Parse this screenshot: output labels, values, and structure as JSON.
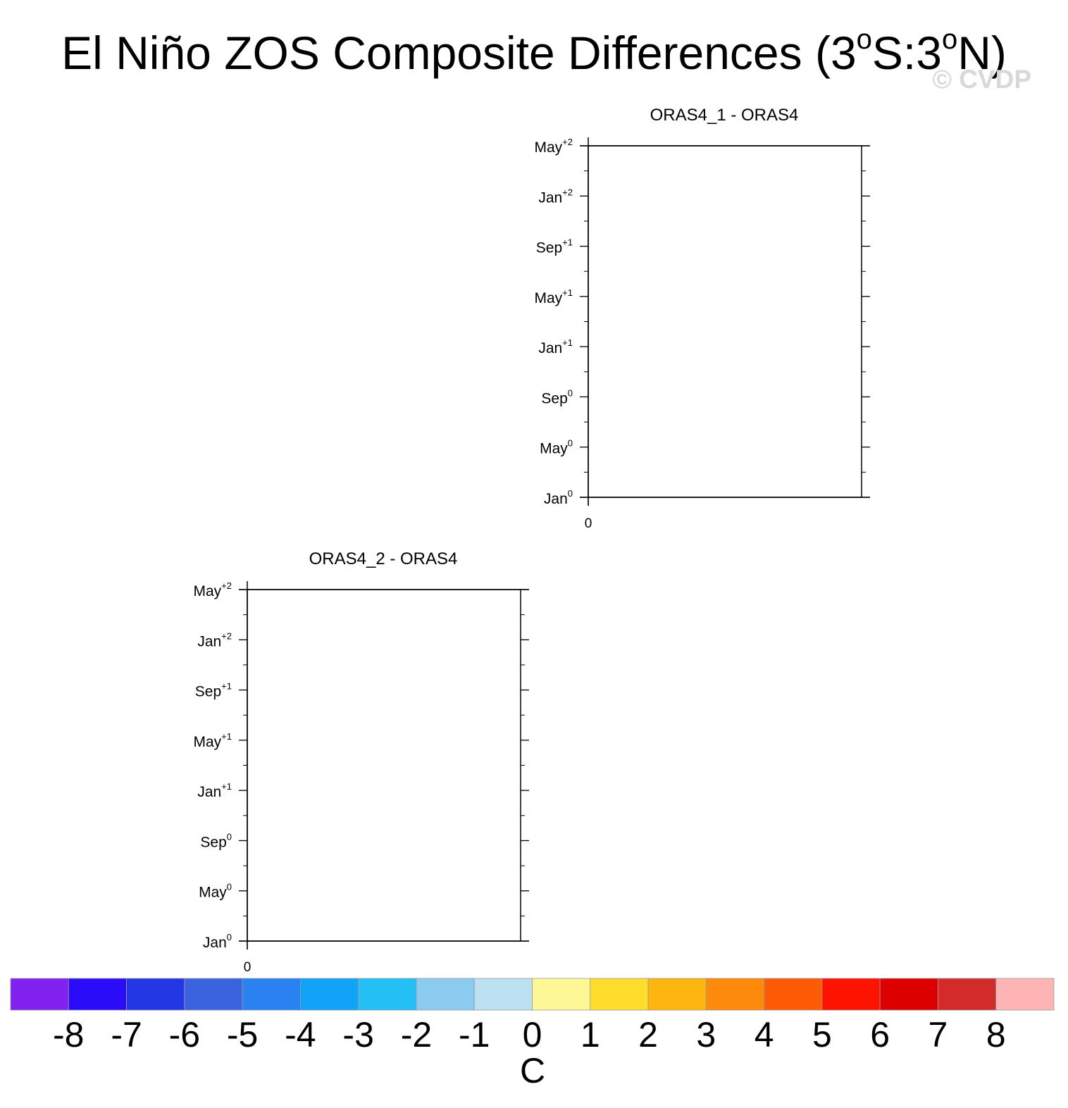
{
  "title": {
    "main": "El Niño ZOS Composite Differences (3",
    "deg1": "o",
    "mid": "S:3",
    "deg2": "o",
    "end": "N)"
  },
  "watermark": "© CVDP",
  "chart_data": [
    {
      "type": "heatmap",
      "title": "ORAS4_1 - ORAS4",
      "y_ticks": [
        {
          "label": "Jan",
          "sup": "0"
        },
        {
          "label": "May",
          "sup": "0"
        },
        {
          "label": "Sep",
          "sup": "0"
        },
        {
          "label": "Jan",
          "sup": "+1"
        },
        {
          "label": "May",
          "sup": "+1"
        },
        {
          "label": "Sep",
          "sup": "+1"
        },
        {
          "label": "Jan",
          "sup": "+2"
        },
        {
          "label": "May",
          "sup": "+2"
        }
      ],
      "x_ticks": [
        "0"
      ],
      "values": []
    },
    {
      "type": "heatmap",
      "title": "ORAS4_2 - ORAS4",
      "y_ticks": [
        {
          "label": "Jan",
          "sup": "0"
        },
        {
          "label": "May",
          "sup": "0"
        },
        {
          "label": "Sep",
          "sup": "0"
        },
        {
          "label": "Jan",
          "sup": "+1"
        },
        {
          "label": "May",
          "sup": "+1"
        },
        {
          "label": "Sep",
          "sup": "+1"
        },
        {
          "label": "Jan",
          "sup": "+2"
        },
        {
          "label": "May",
          "sup": "+2"
        }
      ],
      "x_ticks": [
        "0"
      ],
      "values": []
    }
  ],
  "colorbar": {
    "unit": "C",
    "labels": [
      "-8",
      "-7",
      "-6",
      "-5",
      "-4",
      "-3",
      "-2",
      "-1",
      "0",
      "1",
      "2",
      "3",
      "4",
      "5",
      "6",
      "7",
      "8"
    ],
    "colors": [
      "#8122f0",
      "#2a0cf9",
      "#2337e5",
      "#3b63df",
      "#2a81f2",
      "#11a3f8",
      "#24c0f5",
      "#8acbef",
      "#bbe1f2",
      "#fdf796",
      "#fedd2c",
      "#fdb50f",
      "#fe8a0b",
      "#fe5b06",
      "#fe1300",
      "#dd0000",
      "#d32a2a",
      "#feb4b4"
    ]
  }
}
